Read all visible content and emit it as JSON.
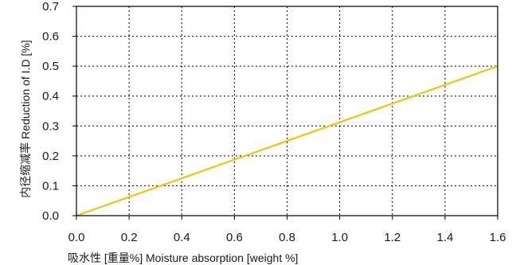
{
  "chart_data": {
    "type": "line",
    "xlabel": "吸水性 [重量%]  Moisture absorption [weight %]",
    "ylabel": "内径缩减率 Reduction of  I.D  [%]",
    "xlim": [
      0.0,
      1.6
    ],
    "ylim": [
      0.0,
      0.7
    ],
    "x_ticks": [
      "0.0",
      "0.2",
      "0.4",
      "0.6",
      "0.8",
      "1.0",
      "1.2",
      "1.4",
      "1.6"
    ],
    "y_ticks": [
      "0.0",
      "0.1",
      "0.2",
      "0.3",
      "0.4",
      "0.5",
      "0.6",
      "0.7"
    ],
    "grid": true,
    "grid_style": "dotted",
    "series": [
      {
        "color": "#f5c400",
        "x": [
          0.0,
          1.6
        ],
        "y": [
          0.0,
          0.5
        ]
      }
    ]
  }
}
